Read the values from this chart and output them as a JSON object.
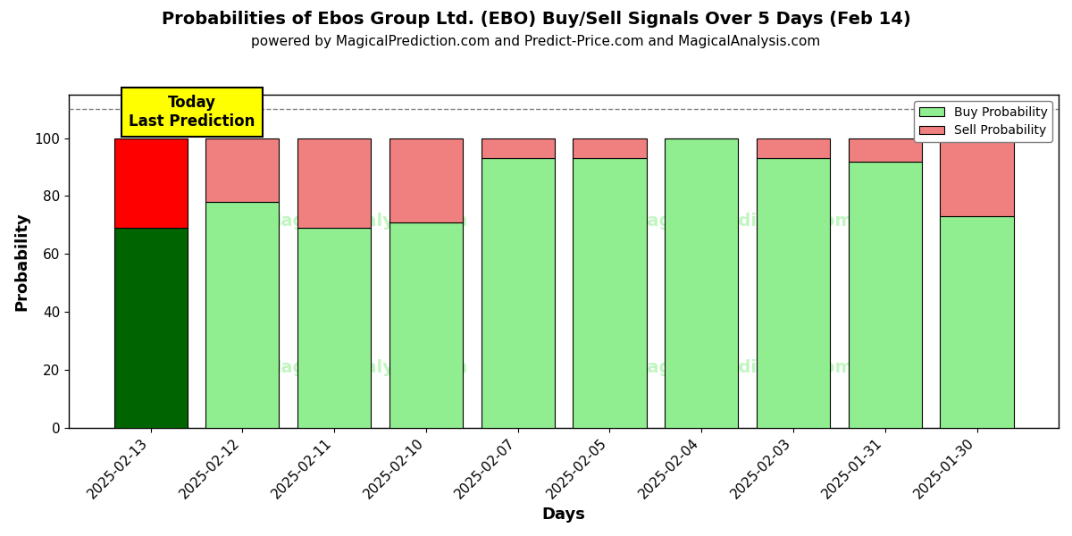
{
  "title": "Probabilities of Ebos Group Ltd. (EBO) Buy/Sell Signals Over 5 Days (Feb 14)",
  "subtitle": "powered by MagicalPrediction.com and Predict-Price.com and MagicalAnalysis.com",
  "xlabel": "Days",
  "ylabel": "Probability",
  "dates": [
    "2025-02-13",
    "2025-02-12",
    "2025-02-11",
    "2025-02-10",
    "2025-02-07",
    "2025-02-05",
    "2025-02-04",
    "2025-02-03",
    "2025-01-31",
    "2025-01-30"
  ],
  "buy_values": [
    69,
    78,
    69,
    71,
    93,
    93,
    100,
    93,
    92,
    73
  ],
  "sell_values": [
    31,
    22,
    31,
    29,
    7,
    7,
    0,
    7,
    8,
    27
  ],
  "today_index": 0,
  "buy_color_today": "#006400",
  "sell_color_today": "#ff0000",
  "buy_color_normal": "#90EE90",
  "sell_color_normal": "#F08080",
  "bar_edge_color": "#000000",
  "background_color": "#ffffff",
  "plot_bg_color": "#ffffff",
  "grid_color": "#ffffff",
  "ylim_max": 115,
  "yticks": [
    0,
    20,
    40,
    60,
    80,
    100
  ],
  "dashed_line_y": 110,
  "today_label": "Today\nLast Prediction",
  "today_box_color": "#ffff00",
  "legend_buy_label": "Buy Probability",
  "legend_sell_label": "Sell Probability",
  "title_fontsize": 14,
  "subtitle_fontsize": 11,
  "axis_label_fontsize": 13,
  "tick_fontsize": 11,
  "bar_width": 0.8
}
